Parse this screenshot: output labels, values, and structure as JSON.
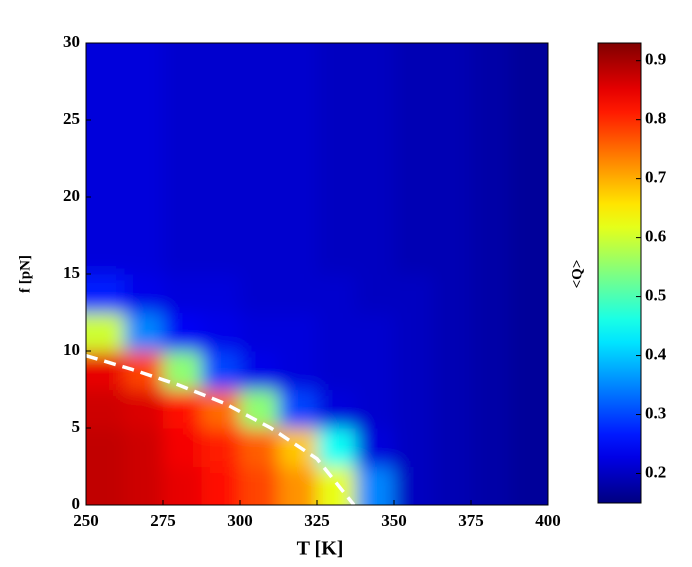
{
  "chart_data": {
    "type": "heatmap",
    "xlabel": "T [K]",
    "ylabel": "f [pN]",
    "colorbar_label": "<Q>",
    "xlim": [
      250,
      400
    ],
    "xticks": [
      250,
      275,
      300,
      325,
      350,
      375,
      400
    ],
    "ylim": [
      0,
      30
    ],
    "yticks": [
      0,
      5,
      10,
      15,
      20,
      25,
      30
    ],
    "clim": [
      0.15,
      0.93
    ],
    "cticks": [
      0.2,
      0.3,
      0.4,
      0.5,
      0.6,
      0.7,
      0.8,
      0.9
    ],
    "colormap": "jet",
    "x": [
      256.25,
      268.75,
      281.25,
      293.75,
      306.25,
      318.75,
      331.25,
      343.75,
      356.25,
      368.75,
      381.25,
      393.75
    ],
    "y": [
      1.25,
      3.75,
      6.25,
      8.75,
      11.25,
      13.75,
      16.25,
      18.75,
      21.25,
      23.75,
      26.25,
      28.75
    ],
    "z": [
      [
        0.88,
        0.87,
        0.85,
        0.82,
        0.78,
        0.72,
        0.62,
        0.35,
        0.2,
        0.19,
        0.18,
        0.17
      ],
      [
        0.88,
        0.87,
        0.84,
        0.81,
        0.76,
        0.68,
        0.45,
        0.22,
        0.2,
        0.19,
        0.18,
        0.17
      ],
      [
        0.87,
        0.86,
        0.82,
        0.75,
        0.55,
        0.3,
        0.22,
        0.21,
        0.2,
        0.19,
        0.18,
        0.17
      ],
      [
        0.85,
        0.78,
        0.55,
        0.3,
        0.23,
        0.22,
        0.21,
        0.21,
        0.2,
        0.19,
        0.18,
        0.17
      ],
      [
        0.6,
        0.35,
        0.24,
        0.23,
        0.22,
        0.22,
        0.21,
        0.21,
        0.2,
        0.19,
        0.18,
        0.17
      ],
      [
        0.27,
        0.23,
        0.22,
        0.22,
        0.21,
        0.21,
        0.21,
        0.2,
        0.2,
        0.19,
        0.18,
        0.17
      ],
      [
        0.22,
        0.22,
        0.21,
        0.21,
        0.21,
        0.21,
        0.2,
        0.2,
        0.19,
        0.19,
        0.18,
        0.17
      ],
      [
        0.22,
        0.22,
        0.21,
        0.21,
        0.21,
        0.21,
        0.2,
        0.2,
        0.19,
        0.19,
        0.18,
        0.17
      ],
      [
        0.22,
        0.22,
        0.21,
        0.21,
        0.21,
        0.21,
        0.2,
        0.2,
        0.19,
        0.19,
        0.18,
        0.17
      ],
      [
        0.22,
        0.22,
        0.21,
        0.21,
        0.21,
        0.21,
        0.2,
        0.2,
        0.19,
        0.19,
        0.18,
        0.17
      ],
      [
        0.22,
        0.22,
        0.21,
        0.21,
        0.21,
        0.21,
        0.2,
        0.2,
        0.19,
        0.19,
        0.18,
        0.17
      ],
      [
        0.22,
        0.22,
        0.21,
        0.21,
        0.21,
        0.21,
        0.2,
        0.2,
        0.19,
        0.19,
        0.18,
        0.17
      ]
    ],
    "line": {
      "color": "#ffffff",
      "dashed": true,
      "x": [
        250,
        265,
        280,
        295,
        310,
        325,
        337
      ],
      "y": [
        9.7,
        8.8,
        7.8,
        6.6,
        5,
        3,
        0
      ]
    }
  }
}
